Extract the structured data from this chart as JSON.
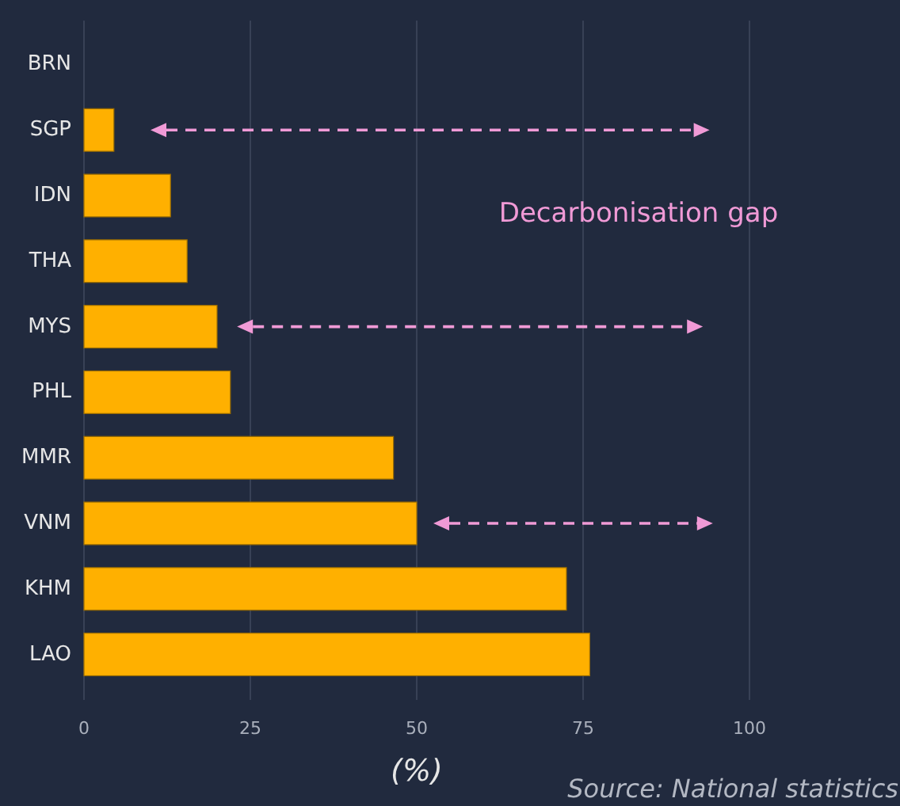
{
  "chart_data": {
    "type": "bar",
    "orientation": "horizontal",
    "categories": [
      "BRN",
      "SGP",
      "IDN",
      "THA",
      "MYS",
      "PHL",
      "MMR",
      "VNM",
      "KHM",
      "LAO"
    ],
    "values": [
      0,
      4.5,
      13,
      15.5,
      20,
      22,
      46.5,
      50,
      72.5,
      76
    ],
    "color": "#ffb000",
    "xlim": [
      0,
      100
    ],
    "xticks": [
      0,
      25,
      50,
      75,
      100
    ],
    "grid": "x",
    "xlabel": "(%)",
    "annotations": [
      "Decarbonisation gap",
      "Source: National statistics"
    ]
  }
}
